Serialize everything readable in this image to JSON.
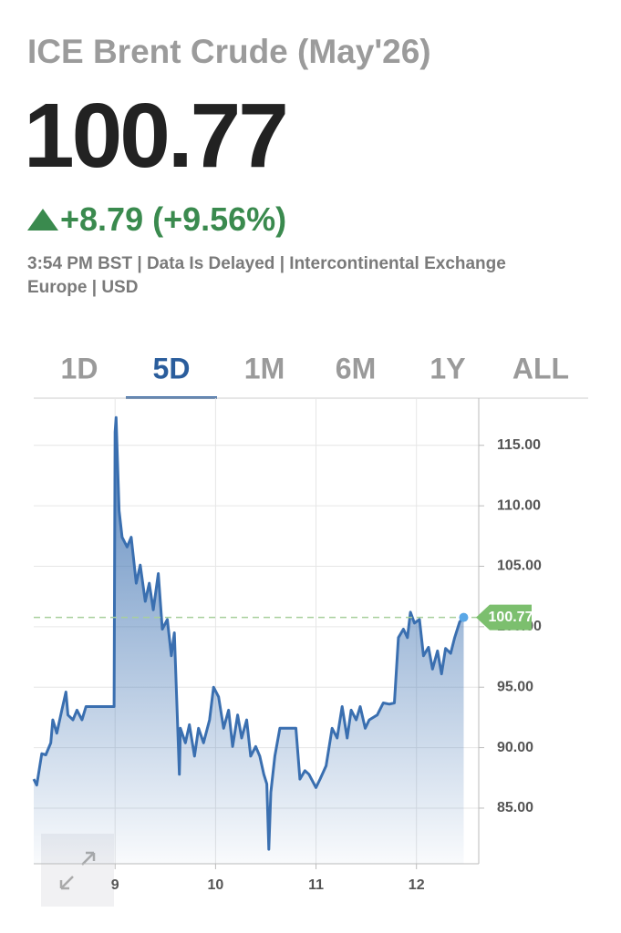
{
  "header": {
    "title": "ICE Brent Crude (May'26)",
    "price": "100.77",
    "change": "+8.79 (+9.56%)",
    "info": "3:54 PM BST | Data Is Delayed | Intercontinental Exchange Europe | USD"
  },
  "tabs": {
    "items": [
      "1D",
      "5D",
      "1M",
      "6M",
      "1Y",
      "ALL"
    ],
    "active": 1
  },
  "chart_data": {
    "type": "area",
    "color": "#3a6fb0",
    "grid": true,
    "x": [
      8.19,
      8.22,
      8.27,
      8.31,
      8.36,
      8.38,
      8.42,
      8.47,
      8.51,
      8.53,
      8.58,
      8.62,
      8.67,
      8.71,
      8.76,
      8.99,
      9.0,
      9.01,
      9.04,
      9.07,
      9.12,
      9.16,
      9.21,
      9.25,
      9.3,
      9.34,
      9.38,
      9.43,
      9.47,
      9.52,
      9.56,
      9.59,
      9.64,
      9.65,
      9.7,
      9.74,
      9.79,
      9.83,
      9.88,
      9.94,
      9.98,
      10.03,
      10.08,
      10.13,
      10.17,
      10.22,
      10.26,
      10.31,
      10.35,
      10.4,
      10.44,
      10.48,
      10.51,
      10.53,
      10.55,
      10.59,
      10.64,
      10.71,
      10.8,
      10.84,
      10.89,
      10.93,
      11.0,
      11.04,
      11.1,
      11.16,
      11.21,
      11.26,
      11.31,
      11.35,
      11.4,
      11.44,
      11.49,
      11.53,
      11.61,
      11.67,
      11.73,
      11.78,
      11.82,
      11.87,
      11.91,
      11.94,
      11.98,
      12.03,
      12.07,
      12.12,
      12.16,
      12.21,
      12.25,
      12.29,
      12.34,
      12.38,
      12.43,
      12.47
    ],
    "values": [
      87.4,
      86.9,
      89.5,
      89.4,
      90.4,
      92.3,
      91.2,
      93.1,
      94.6,
      92.7,
      92.3,
      93.1,
      92.3,
      93.4,
      93.4,
      93.4,
      116.1,
      117.3,
      109.6,
      107.4,
      106.6,
      107.4,
      103.6,
      105.1,
      102.1,
      103.6,
      101.4,
      104.4,
      99.8,
      100.6,
      97.6,
      99.5,
      87.8,
      91.6,
      90.4,
      91.9,
      89.3,
      91.6,
      90.4,
      92.3,
      95.0,
      94.2,
      91.6,
      93.1,
      90.1,
      92.7,
      90.8,
      92.3,
      89.3,
      90.1,
      89.3,
      87.8,
      87.0,
      81.6,
      86.3,
      89.3,
      91.6,
      91.6,
      91.6,
      87.4,
      88.1,
      87.8,
      86.7,
      87.4,
      88.5,
      91.6,
      90.8,
      93.4,
      90.8,
      93.1,
      92.3,
      93.4,
      91.6,
      92.3,
      92.7,
      93.7,
      93.6,
      93.7,
      99.1,
      99.8,
      99.1,
      101.2,
      100.3,
      100.6,
      97.6,
      98.3,
      96.5,
      98.0,
      96.1,
      98.2,
      97.8,
      99.1,
      100.4,
      100.77
    ],
    "xlim": [
      8.19,
      12.62
    ],
    "ylim": [
      80.4,
      118.9
    ],
    "xticks": [
      9,
      10,
      11,
      12
    ],
    "yticks": [
      {
        "value": 85,
        "label": "85.00"
      },
      {
        "value": 90,
        "label": "90.00"
      },
      {
        "value": 95,
        "label": "95.00"
      },
      {
        "value": 100,
        "label": "100.00"
      },
      {
        "value": 105,
        "label": "105.00"
      },
      {
        "value": 110,
        "label": "110.00"
      },
      {
        "value": 115,
        "label": "115.00"
      }
    ]
  }
}
